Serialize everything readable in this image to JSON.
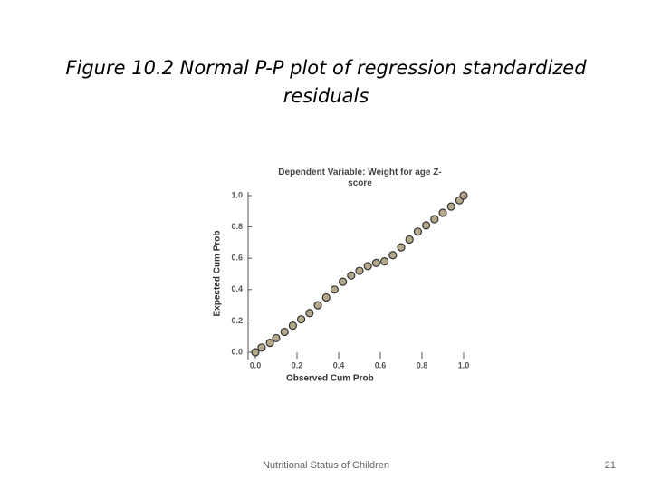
{
  "slide": {
    "title": "Figure 10.2 Normal P-P plot of regression standardized residuals",
    "footer": "Nutritional Status of Children",
    "page_number": 21
  },
  "chart_data": {
    "type": "scatter",
    "title": "Dependent Variable: Weight for age Z-score",
    "x_label": "Observed Cum Prob",
    "y_label": "Expected Cum Prob",
    "x": [
      0,
      0.03,
      0.07,
      0.1,
      0.14,
      0.18,
      0.22,
      0.26,
      0.3,
      0.34,
      0.38,
      0.42,
      0.46,
      0.5,
      0.54,
      0.58,
      0.62,
      0.66,
      0.7,
      0.74,
      0.78,
      0.82,
      0.86,
      0.9,
      0.94,
      0.98,
      1.0
    ],
    "values": [
      0,
      0.03,
      0.06,
      0.09,
      0.13,
      0.17,
      0.21,
      0.25,
      0.3,
      0.35,
      0.4,
      0.45,
      0.49,
      0.52,
      0.55,
      0.57,
      0.58,
      0.62,
      0.67,
      0.72,
      0.77,
      0.81,
      0.85,
      0.89,
      0.93,
      0.97,
      1.0
    ],
    "color": "#b5a88a",
    "xlim": [
      0,
      1
    ],
    "ylim": [
      0,
      1
    ],
    "xticks": [
      {
        "value": 0,
        "label": "0.0"
      },
      0.2,
      0.4,
      0.6,
      0.8,
      {
        "value": 1,
        "label": "1.0"
      }
    ],
    "yticks": [
      {
        "value": 0,
        "label": "0.0"
      },
      0.2,
      0.4,
      0.6,
      0.8,
      {
        "value": 1,
        "label": "1.0"
      }
    ]
  }
}
